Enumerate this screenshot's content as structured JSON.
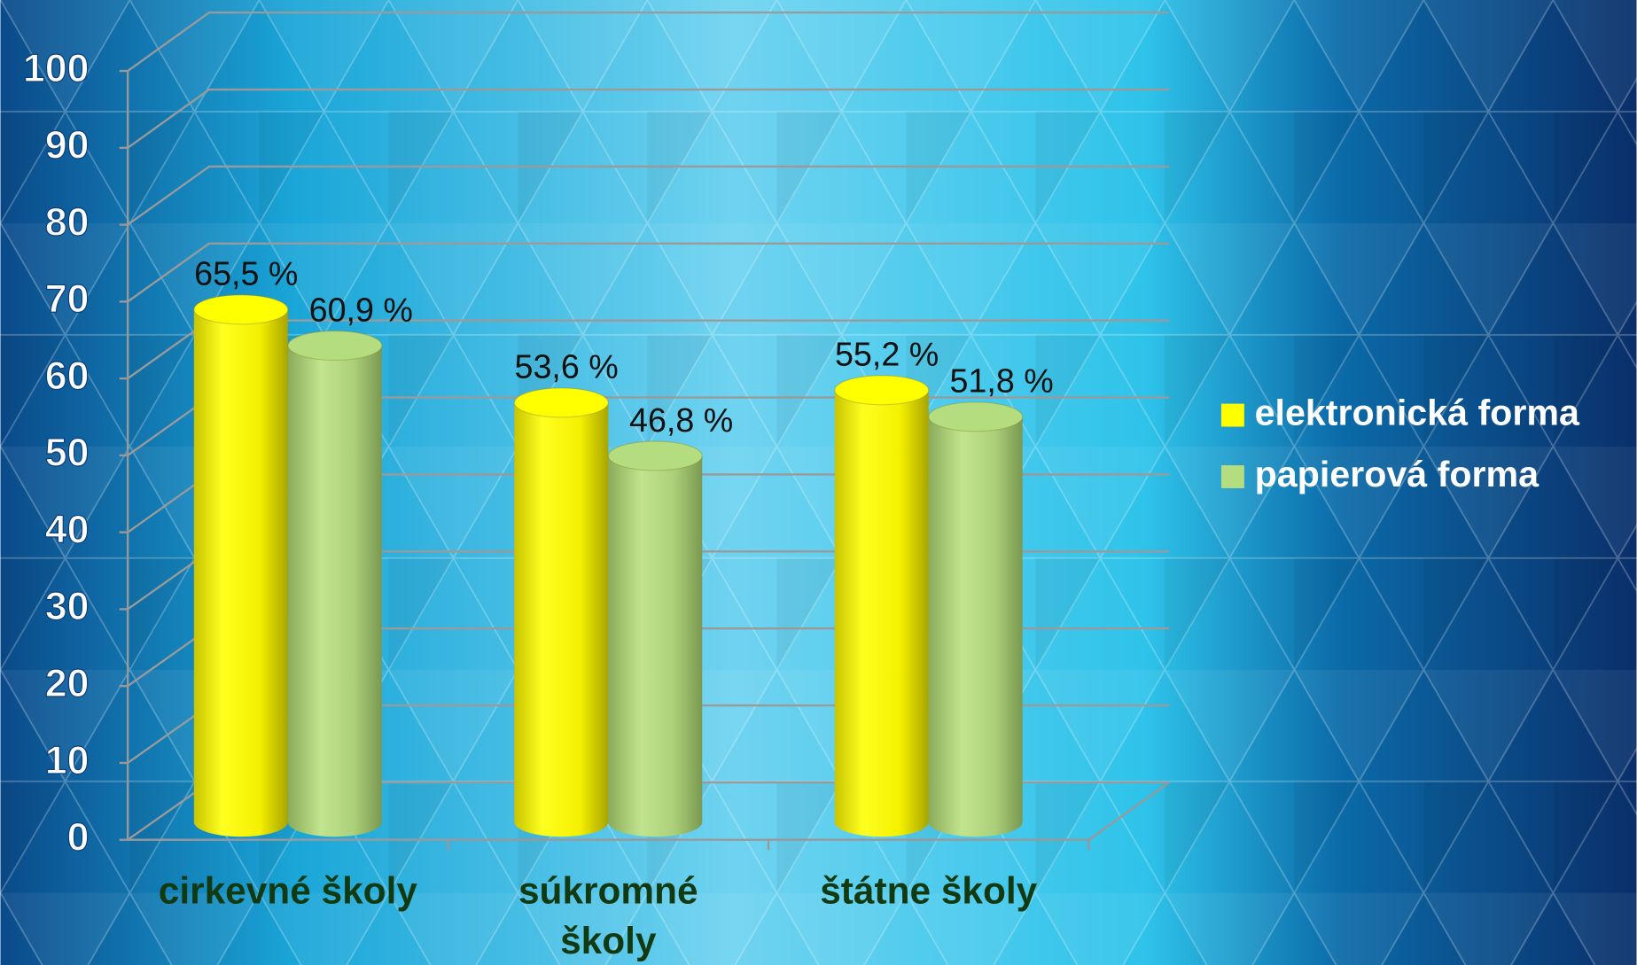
{
  "chart_data": {
    "type": "bar",
    "categories": [
      "cirkevné školy",
      "súkromné školy",
      "štátne školy"
    ],
    "series": [
      {
        "name": "elektronická forma",
        "color": "#ffff00",
        "values": [
          65.5,
          53.6,
          55.2
        ],
        "value_labels": [
          "65,5 %",
          "53,6 %",
          "55,2 %"
        ]
      },
      {
        "name": "papierová forma",
        "color": "#b3dd7f",
        "values": [
          60.9,
          46.8,
          51.8
        ],
        "value_labels": [
          "60,9 %",
          "46,8 %",
          "51,8 %"
        ]
      }
    ],
    "ylim": [
      0,
      100
    ],
    "yticks": [
      0,
      10,
      20,
      30,
      40,
      50,
      60,
      70,
      80,
      90,
      100
    ],
    "grid": true,
    "legend": "right"
  }
}
